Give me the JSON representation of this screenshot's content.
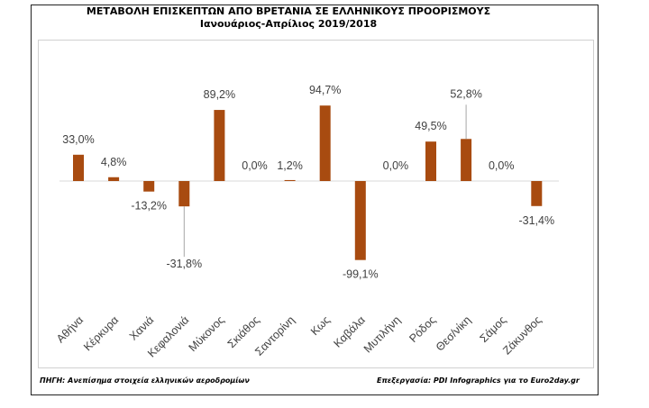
{
  "title": "ΜΕΤΑΒΟΛΗ  ΕΠΙΣΚΕΠΤΩΝ ΑΠΟ ΒΡΕΤΑΝΙΑ ΣΕ ΕΛΛΗΝΙΚΟΥΣ ΠΡΟΟΡΙΣΜΟΥΣ",
  "subtitle": "Ιανουάριος-Απρίλιος 2019/2018",
  "source": "ΠΗΓΗ: Ανεπίσημα στοιχεία ελληνικών αεροδρομίων",
  "credit": "Επεξεργασία: PDI Infographics για το Euro2day.gr",
  "colors": {
    "bar": "#a84b10",
    "axis": "#d9d9d9",
    "text": "#404040"
  },
  "chart_data": {
    "type": "bar",
    "categories": [
      "Αθήνα",
      "Κέρκυρα",
      "Χανιά",
      "Κεφαλονιά",
      "Μύκονος",
      "Σκιάθος",
      "Σαντορίνη",
      "Κως",
      "Καβάλα",
      "Μυτιλήνη",
      "Ρόδος",
      "Θεσ/νίκη",
      "Σάμος",
      "Ζάκυνθος"
    ],
    "values": [
      33.0,
      4.8,
      -13.2,
      -31.8,
      89.2,
      0.0,
      1.2,
      94.7,
      -99.1,
      0.0,
      49.5,
      52.8,
      0.0,
      -31.4
    ],
    "data_labels": [
      "33,0%",
      "4,8%",
      "-13,2%",
      "-31,8%",
      "89,2%",
      "0,0%",
      "1,2%",
      "94,7%",
      "-99,1%",
      "0,0%",
      "49,5%",
      "52,8%",
      "0,0%",
      "-31,4%"
    ],
    "xlabel": "",
    "ylabel": "",
    "grid": false,
    "legend": "none"
  }
}
